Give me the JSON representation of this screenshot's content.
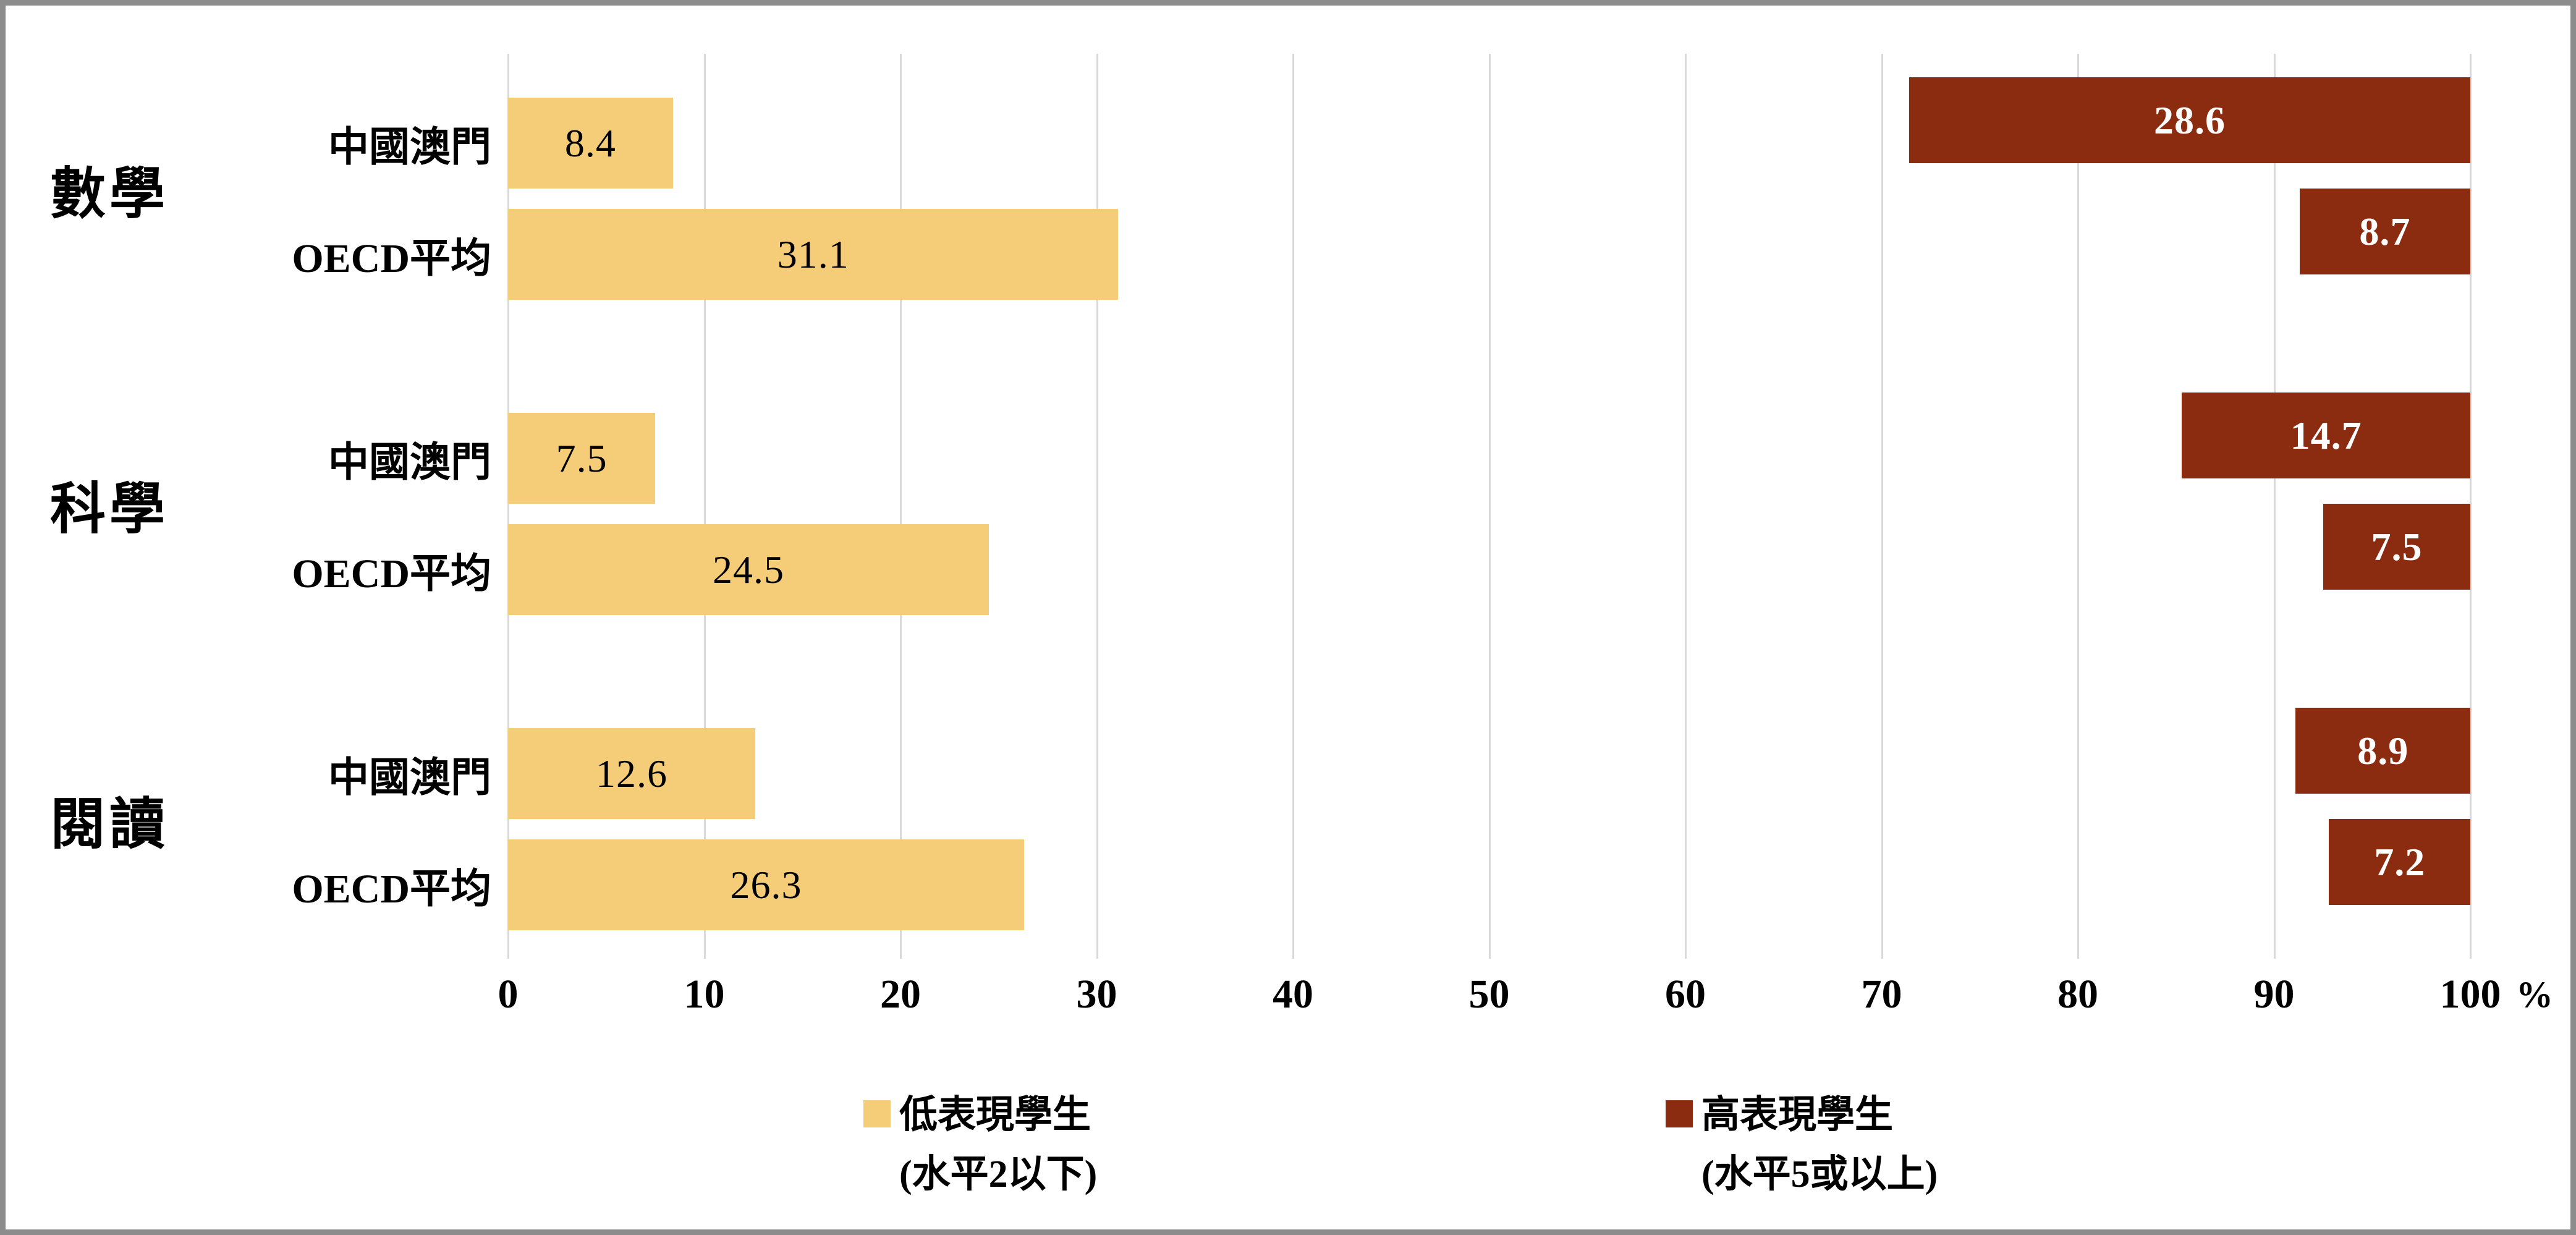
{
  "chart_data": {
    "type": "bar",
    "orientation": "horizontal",
    "title": "",
    "xlabel": "",
    "ylabel": "",
    "unit_suffix": "%",
    "axis": {
      "min": 0,
      "max": 100,
      "ticks": [
        0,
        10,
        20,
        30,
        40,
        50,
        60,
        70,
        80,
        90,
        100
      ],
      "grid": true
    },
    "series_info": {
      "low": {
        "name": "低表現學生",
        "qualifier": "(水平2以下)",
        "color": "#F5CD79",
        "anchor": "left"
      },
      "high": {
        "name": "高表現學生",
        "qualifier": "(水平5或以上)",
        "color": "#8B2B0F",
        "anchor": "right"
      }
    },
    "groups": [
      {
        "label": "數學",
        "rows": [
          {
            "label": "中國澳門",
            "low": 8.4,
            "high": 28.6
          },
          {
            "label": "OECD平均",
            "low": 31.1,
            "high": 8.7
          }
        ]
      },
      {
        "label": "科學",
        "rows": [
          {
            "label": "中國澳門",
            "low": 7.5,
            "high": 14.7
          },
          {
            "label": "OECD平均",
            "low": 24.5,
            "high": 7.5
          }
        ]
      },
      {
        "label": "閱讀",
        "rows": [
          {
            "label": "中國澳門",
            "low": 12.6,
            "high": 8.9
          },
          {
            "label": "OECD平均",
            "low": 26.3,
            "high": 7.2
          }
        ]
      }
    ],
    "legend": [
      {
        "label": "低表現學生",
        "sublabel": "(水平2以下)",
        "color": "#F5CD79"
      },
      {
        "label": "高表現學生",
        "sublabel": "(水平5或以上)",
        "color": "#8B2B0F"
      }
    ],
    "colors": {
      "low_bar": "#F5CD79",
      "high_bar": "#8B2B0F",
      "gridline": "#D9D9D9",
      "frame_border": "#8C8C8C",
      "background": "#FFFFFF",
      "low_label_text": "#000000",
      "high_label_text": "#FFFFFF"
    }
  }
}
